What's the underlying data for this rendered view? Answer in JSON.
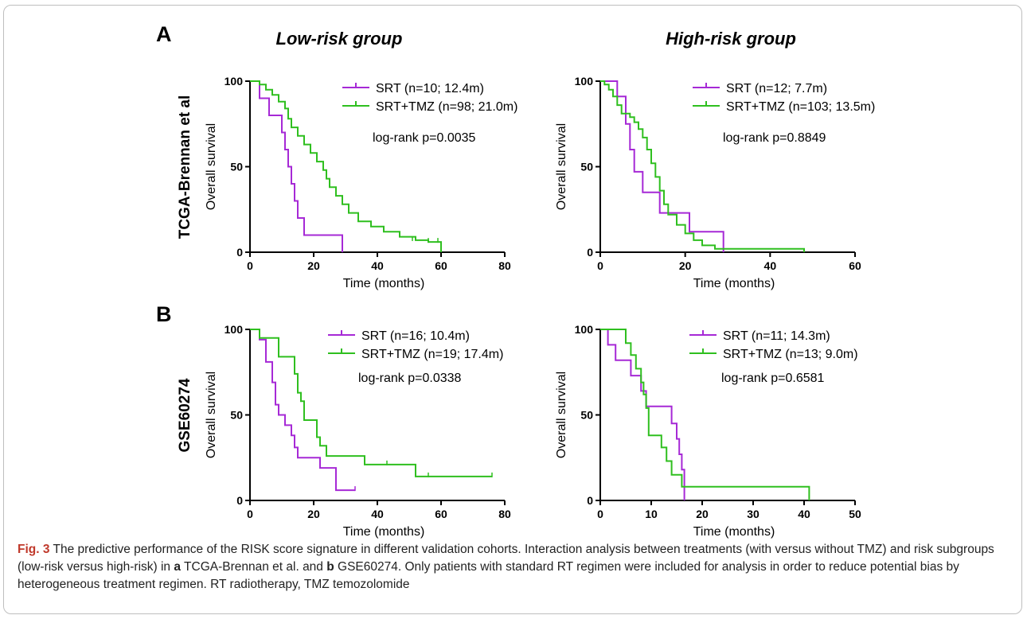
{
  "figure": {
    "panel_a_letter": "A",
    "panel_b_letter": "B",
    "col_low_title": "Low-risk group",
    "col_high_title": "High-risk group",
    "row_a_label": "TCGA-Brennan et al",
    "row_b_label": "GSE60274",
    "series_colors": {
      "SRT": "#a629d6",
      "SRT+TMZ": "#2fbf1f"
    }
  },
  "caption": {
    "fig_label": "Fig. 3",
    "text_1": " The predictive performance of the RISK score signature in different validation cohorts. Interaction analysis between treatments (with versus without TMZ) and risk subgroups (low-risk versus high-risk) in ",
    "a_letter": "a",
    "text_2": " TCGA-Brennan et al. and ",
    "b_letter": "b",
    "text_3": " GSE60274. Only patients with standard RT regimen were included for analysis in order to reduce potential bias by heterogeneous treatment regimen. RT radiotherapy, TMZ temozolomide"
  },
  "chart_data": [
    {
      "type": "line",
      "panel": "A-low",
      "xlabel": "Time (months)",
      "ylabel": "Overall survival",
      "xlim": [
        0,
        80
      ],
      "ylim": [
        0,
        100
      ],
      "xticks": [
        0,
        20,
        40,
        60,
        80
      ],
      "yticks": [
        0,
        50,
        100
      ],
      "annotation": "log-rank p=0.0035",
      "legend": [
        "SRT (n=10; 12.4m)",
        "SRT+TMZ (n=98; 21.0m)"
      ],
      "series": [
        {
          "name": "SRT",
          "step": [
            [
              0,
              100
            ],
            [
              3,
              100
            ],
            [
              3,
              90
            ],
            [
              6,
              90
            ],
            [
              6,
              80
            ],
            [
              10,
              80
            ],
            [
              10,
              70
            ],
            [
              11,
              70
            ],
            [
              11,
              60
            ],
            [
              12,
              60
            ],
            [
              12,
              50
            ],
            [
              13,
              50
            ],
            [
              13,
              40
            ],
            [
              14,
              40
            ],
            [
              14,
              30
            ],
            [
              15,
              30
            ],
            [
              15,
              20
            ],
            [
              17,
              20
            ],
            [
              17,
              10
            ],
            [
              29,
              10
            ],
            [
              29,
              0
            ]
          ],
          "censors": []
        },
        {
          "name": "SRT+TMZ",
          "step": [
            [
              0,
              100
            ],
            [
              3,
              100
            ],
            [
              3,
              98
            ],
            [
              5,
              98
            ],
            [
              5,
              95
            ],
            [
              7,
              95
            ],
            [
              7,
              92
            ],
            [
              9,
              92
            ],
            [
              9,
              88
            ],
            [
              11,
              88
            ],
            [
              11,
              84
            ],
            [
              12,
              84
            ],
            [
              12,
              78
            ],
            [
              13,
              78
            ],
            [
              13,
              73
            ],
            [
              15,
              73
            ],
            [
              15,
              68
            ],
            [
              17,
              68
            ],
            [
              17,
              63
            ],
            [
              19,
              63
            ],
            [
              19,
              58
            ],
            [
              21,
              58
            ],
            [
              21,
              53
            ],
            [
              23,
              53
            ],
            [
              23,
              48
            ],
            [
              24,
              48
            ],
            [
              24,
              43
            ],
            [
              25,
              43
            ],
            [
              25,
              38
            ],
            [
              27,
              38
            ],
            [
              27,
              33
            ],
            [
              29,
              33
            ],
            [
              29,
              28
            ],
            [
              31,
              28
            ],
            [
              31,
              23
            ],
            [
              34,
              23
            ],
            [
              34,
              18
            ],
            [
              38,
              18
            ],
            [
              38,
              15
            ],
            [
              42,
              15
            ],
            [
              42,
              12
            ],
            [
              47,
              12
            ],
            [
              47,
              9
            ],
            [
              52,
              9
            ],
            [
              52,
              7
            ],
            [
              56,
              7
            ],
            [
              56,
              6
            ],
            [
              60,
              6
            ],
            [
              60,
              0
            ]
          ],
          "censors": [
            [
              51,
              7
            ],
            [
              56,
              6
            ],
            [
              59,
              6
            ]
          ]
        }
      ]
    },
    {
      "type": "line",
      "panel": "A-high",
      "xlabel": "Time (months)",
      "ylabel": "Overall survival",
      "xlim": [
        0,
        60
      ],
      "ylim": [
        0,
        100
      ],
      "xticks": [
        0,
        20,
        40,
        60
      ],
      "yticks": [
        0,
        50,
        100
      ],
      "annotation": "log-rank p=0.8849",
      "legend": [
        "SRT (n=12; 7.7m)",
        "SRT+TMZ (n=103; 13.5m)"
      ],
      "series": [
        {
          "name": "SRT",
          "step": [
            [
              0,
              100
            ],
            [
              4,
              100
            ],
            [
              4,
              91
            ],
            [
              6,
              91
            ],
            [
              6,
              75
            ],
            [
              7,
              75
            ],
            [
              7,
              60
            ],
            [
              8,
              60
            ],
            [
              8,
              47
            ],
            [
              10,
              47
            ],
            [
              10,
              35
            ],
            [
              14,
              35
            ],
            [
              14,
              23
            ],
            [
              21,
              23
            ],
            [
              21,
              12
            ],
            [
              29,
              12
            ],
            [
              29,
              0
            ]
          ],
          "censors": []
        },
        {
          "name": "SRT+TMZ",
          "step": [
            [
              0,
              100
            ],
            [
              1,
              100
            ],
            [
              1,
              98
            ],
            [
              2,
              98
            ],
            [
              2,
              95
            ],
            [
              3,
              95
            ],
            [
              3,
              91
            ],
            [
              4,
              91
            ],
            [
              4,
              86
            ],
            [
              5,
              86
            ],
            [
              5,
              81
            ],
            [
              7,
              81
            ],
            [
              7,
              79
            ],
            [
              8,
              79
            ],
            [
              8,
              76
            ],
            [
              9,
              76
            ],
            [
              9,
              72
            ],
            [
              10,
              72
            ],
            [
              10,
              67
            ],
            [
              11,
              67
            ],
            [
              11,
              60
            ],
            [
              12,
              60
            ],
            [
              12,
              52
            ],
            [
              13,
              52
            ],
            [
              13,
              44
            ],
            [
              14,
              44
            ],
            [
              14,
              36
            ],
            [
              15,
              36
            ],
            [
              15,
              28
            ],
            [
              16,
              28
            ],
            [
              16,
              22
            ],
            [
              18,
              22
            ],
            [
              18,
              16
            ],
            [
              20,
              16
            ],
            [
              20,
              11
            ],
            [
              22,
              11
            ],
            [
              22,
              7
            ],
            [
              24,
              7
            ],
            [
              24,
              4
            ],
            [
              27,
              4
            ],
            [
              27,
              2
            ],
            [
              48,
              2
            ],
            [
              48,
              0
            ]
          ],
          "censors": []
        }
      ]
    },
    {
      "type": "line",
      "panel": "B-low",
      "xlabel": "Time (months)",
      "ylabel": "Overall survival",
      "xlim": [
        0,
        80
      ],
      "ylim": [
        0,
        100
      ],
      "xticks": [
        0,
        20,
        40,
        60,
        80
      ],
      "yticks": [
        0,
        50,
        100
      ],
      "annotation": "log-rank p=0.0338",
      "legend": [
        "SRT (n=16; 10.4m)",
        "SRT+TMZ (n=19; 17.4m)"
      ],
      "series": [
        {
          "name": "SRT",
          "step": [
            [
              0,
              100
            ],
            [
              3,
              100
            ],
            [
              3,
              94
            ],
            [
              5,
              94
            ],
            [
              5,
              81
            ],
            [
              7,
              81
            ],
            [
              7,
              69
            ],
            [
              8,
              69
            ],
            [
              8,
              56
            ],
            [
              9,
              56
            ],
            [
              9,
              50
            ],
            [
              11,
              50
            ],
            [
              11,
              44
            ],
            [
              13,
              44
            ],
            [
              13,
              38
            ],
            [
              14,
              38
            ],
            [
              14,
              31
            ],
            [
              15,
              31
            ],
            [
              15,
              25
            ],
            [
              22,
              25
            ],
            [
              22,
              19
            ],
            [
              27,
              19
            ],
            [
              27,
              6
            ],
            [
              33,
              6
            ]
          ],
          "censors": [
            [
              33,
              6
            ]
          ]
        },
        {
          "name": "SRT+TMZ",
          "step": [
            [
              0,
              100
            ],
            [
              3,
              100
            ],
            [
              3,
              95
            ],
            [
              9,
              95
            ],
            [
              9,
              84
            ],
            [
              14,
              84
            ],
            [
              14,
              74
            ],
            [
              15,
              74
            ],
            [
              15,
              63
            ],
            [
              16,
              63
            ],
            [
              16,
              58
            ],
            [
              17,
              58
            ],
            [
              17,
              47
            ],
            [
              21,
              47
            ],
            [
              21,
              37
            ],
            [
              22,
              37
            ],
            [
              22,
              32
            ],
            [
              24,
              32
            ],
            [
              24,
              26
            ],
            [
              36,
              26
            ],
            [
              36,
              21
            ],
            [
              52,
              21
            ],
            [
              52,
              14
            ],
            [
              76,
              14
            ]
          ],
          "censors": [
            [
              43,
              21
            ],
            [
              56,
              14
            ],
            [
              76,
              14
            ]
          ]
        }
      ]
    },
    {
      "type": "line",
      "panel": "B-high",
      "xlabel": "Time (months)",
      "ylabel": "Overall survival",
      "xlim": [
        0,
        50
      ],
      "ylim": [
        0,
        100
      ],
      "xticks": [
        0,
        10,
        20,
        30,
        40,
        50
      ],
      "yticks": [
        0,
        50,
        100
      ],
      "annotation": "log-rank p=0.6581",
      "legend": [
        "SRT (n=11; 14.3m)",
        "SRT+TMZ (n=13; 9.0m)"
      ],
      "series": [
        {
          "name": "SRT",
          "step": [
            [
              0,
              100
            ],
            [
              1.5,
              100
            ],
            [
              1.5,
              91
            ],
            [
              3,
              91
            ],
            [
              3,
              82
            ],
            [
              6,
              82
            ],
            [
              6,
              73
            ],
            [
              8,
              73
            ],
            [
              8,
              64
            ],
            [
              9,
              64
            ],
            [
              9,
              55
            ],
            [
              14,
              55
            ],
            [
              14,
              45
            ],
            [
              15,
              45
            ],
            [
              15,
              36
            ],
            [
              15.5,
              36
            ],
            [
              15.5,
              27
            ],
            [
              16,
              27
            ],
            [
              16,
              18
            ],
            [
              16.5,
              18
            ],
            [
              16.5,
              0
            ]
          ],
          "censors": []
        },
        {
          "name": "SRT+TMZ",
          "step": [
            [
              0,
              100
            ],
            [
              5,
              100
            ],
            [
              5,
              92
            ],
            [
              6,
              92
            ],
            [
              6,
              85
            ],
            [
              7,
              85
            ],
            [
              7,
              77
            ],
            [
              8,
              77
            ],
            [
              8,
              69
            ],
            [
              8.5,
              69
            ],
            [
              8.5,
              62
            ],
            [
              9,
              62
            ],
            [
              9,
              54
            ],
            [
              9.5,
              54
            ],
            [
              9.5,
              38
            ],
            [
              12,
              38
            ],
            [
              12,
              31
            ],
            [
              13,
              31
            ],
            [
              13,
              23
            ],
            [
              14,
              23
            ],
            [
              14,
              15
            ],
            [
              16,
              15
            ],
            [
              16,
              8
            ],
            [
              41,
              8
            ],
            [
              41,
              0
            ]
          ],
          "censors": []
        }
      ]
    }
  ]
}
